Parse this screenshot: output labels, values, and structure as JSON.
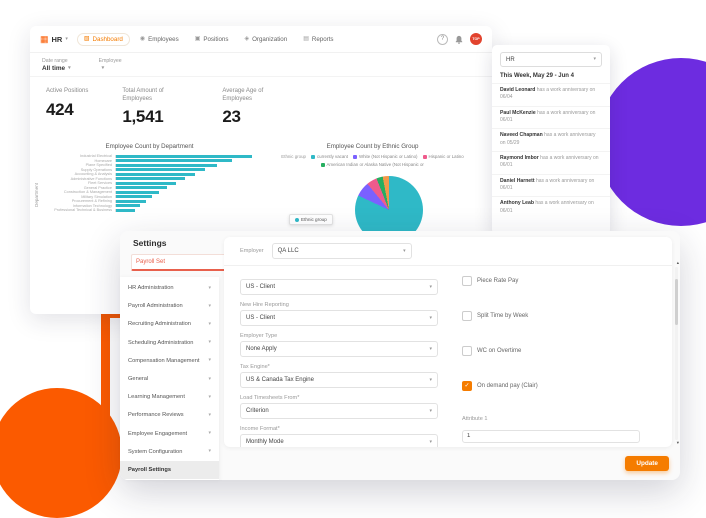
{
  "colors": {
    "accent": "#f57c00",
    "orange_decor": "#fb5a00",
    "purple_decor": "#6d2ce0",
    "avatar": "#e2432e",
    "search_accent": "#e8604c",
    "bar_teal": "#2fb9c7"
  },
  "nav": {
    "brand": "HR",
    "items": [
      {
        "label": "Dashboard",
        "icon": "▧",
        "active": true
      },
      {
        "label": "Employees",
        "icon": "◉",
        "active": false
      },
      {
        "label": "Positions",
        "icon": "▣",
        "active": false
      },
      {
        "label": "Organization",
        "icon": "◈",
        "active": false
      },
      {
        "label": "Reports",
        "icon": "▤",
        "active": false
      }
    ],
    "help_glyph": "?",
    "avatar_text": "TOP"
  },
  "filters": {
    "date_range_label": "Date range",
    "date_range_value": "All time",
    "employee_label": "Employee",
    "employee_value": ""
  },
  "stats": [
    {
      "label": "Active Positions",
      "value": "424"
    },
    {
      "label": "Total Amount of Employees",
      "value": "1,541"
    },
    {
      "label": "Average Age of Employees",
      "value": "23"
    }
  ],
  "chart_data": [
    {
      "type": "bar",
      "orientation": "horizontal",
      "title": "Employee Count by Department",
      "ylabel": "Department",
      "categories": [
        "Industrial Electrical",
        "Homecare",
        "Plane Specified",
        "Supply Operations",
        "Accounting & Analysis",
        "Administrative Functions",
        "Fleet Services",
        "General Practice",
        "Construction & Management",
        "Military Simulation",
        "Procurement & Refining",
        "Information Technology",
        "Professional Technical & Business"
      ],
      "values": [
        312,
        268,
        232,
        205,
        182,
        158,
        138,
        118,
        100,
        84,
        70,
        56,
        44
      ],
      "xlim": [
        0,
        320
      ],
      "color": "#2fb9c7"
    },
    {
      "type": "pie",
      "title": "Employee Count by Ethnic Group",
      "legend_label": "Ethnic group",
      "slices": [
        {
          "label": "currently vacant",
          "value": 82,
          "color": "#2fb9c7"
        },
        {
          "label": "White (Not Hispanic or Latino)",
          "value": 7,
          "color": "#7b61ff"
        },
        {
          "label": "Hispanic or Latino",
          "value": 5,
          "color": "#ef5b8c"
        },
        {
          "label": "American Indian or Alaska Native (Not Hispanic or Latino)",
          "value": 3,
          "color": "#27ae60"
        },
        {
          "label": "Other",
          "value": 3,
          "color": "#f2994a"
        }
      ],
      "tooltip": "Ethnic group"
    }
  ],
  "week_panel": {
    "filter_value": "HR",
    "title": "This Week, May 29 - Jun 4",
    "items": [
      {
        "name": "David Leonard",
        "text": "has a work anniversary on 06/04"
      },
      {
        "name": "Paul McKenzie",
        "text": "has a work anniversary on 06/01"
      },
      {
        "name": "Naveed Chapman",
        "text": "has a work anniversary on 05/29"
      },
      {
        "name": "Raymond Imbor",
        "text": "has a work anniversary on 06/01"
      },
      {
        "name": "Daniel Harnett",
        "text": "has a work anniversary on 06/01"
      },
      {
        "name": "Anthony Leab",
        "text": "has a work anniversary on 06/01"
      }
    ]
  },
  "settings": {
    "title": "Settings",
    "search_value": "Payroll Set",
    "menu": [
      {
        "label": "HR Administration",
        "expandable": true,
        "active": false
      },
      {
        "label": "Payroll Administration",
        "expandable": true,
        "active": false
      },
      {
        "label": "Recruiting Administration",
        "expandable": true,
        "active": false
      },
      {
        "label": "Scheduling Administration",
        "expandable": true,
        "active": false
      },
      {
        "label": "Compensation Management",
        "expandable": true,
        "active": false
      },
      {
        "label": "General",
        "expandable": true,
        "active": false
      },
      {
        "label": "Learning Management",
        "expandable": true,
        "active": false
      },
      {
        "label": "Performance Reviews",
        "expandable": true,
        "active": false
      },
      {
        "label": "Employee Engagement",
        "expandable": true,
        "active": false
      },
      {
        "label": "System Configuration",
        "expandable": true,
        "active": false
      },
      {
        "label": "Payroll Settings",
        "expandable": false,
        "active": true
      }
    ],
    "form": {
      "employer_label": "Employer",
      "employer_value": "QA LLC",
      "fields": [
        {
          "label": "",
          "value": "US - Client"
        },
        {
          "label": "New Hire Reporting",
          "value": "US - Client"
        },
        {
          "label": "Employer Type",
          "value": "None Apply"
        },
        {
          "label": "Tax Engine*",
          "value": "US & Canada Tax Engine"
        },
        {
          "label": "Load Timesheets From*",
          "value": "Criterion"
        },
        {
          "label": "Income Format*",
          "value": "Monthly Mode"
        }
      ],
      "checkboxes": [
        {
          "label": "Piece Rate Pay",
          "checked": false
        },
        {
          "label": "Split Time by Week",
          "checked": false
        },
        {
          "label": "WC on Overtime",
          "checked": false
        },
        {
          "label": "On demand pay (Clair)",
          "checked": true
        }
      ],
      "attributes": [
        {
          "label": "Attribute 1",
          "value": "1"
        },
        {
          "label": "Attribute 2",
          "value": ""
        }
      ],
      "update_label": "Update"
    }
  }
}
